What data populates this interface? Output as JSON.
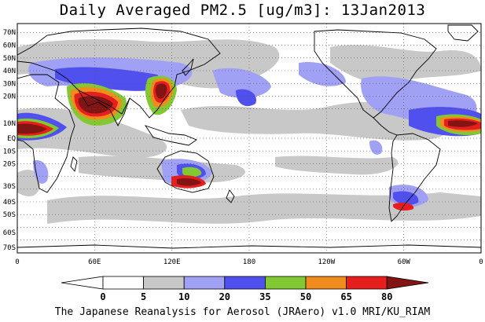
{
  "title": "Daily Averaged PM2.5 [ug/m3]: 13Jan2013",
  "footer": "The Japanese Reanalysis for Aerosol (JRAero) v1.0 MRI/KU_RIAM",
  "map": {
    "projection": "equirectangular, Pacific-centered",
    "lat_labels": [
      "70N",
      "60N",
      "50N",
      "40N",
      "30N",
      "20N",
      "10N",
      "EQ",
      "10S",
      "20S",
      "30S",
      "40S",
      "50S",
      "60S",
      "70S"
    ],
    "lon_labels": [
      "0",
      "60E",
      "120E",
      "180",
      "120W",
      "60W",
      "0"
    ],
    "gridlines": "dotted",
    "ocean_color": "#ffffff",
    "coastline_color": "#000000"
  },
  "colorbar": {
    "tick_labels": [
      "0",
      "5",
      "10",
      "20",
      "35",
      "50",
      "65",
      "80"
    ],
    "colors": [
      "#ffffff",
      "#c8c8c8",
      "#a0a0f5",
      "#5050ee",
      "#82c832",
      "#f08c1e",
      "#e61e1e",
      "#821414"
    ]
  }
}
